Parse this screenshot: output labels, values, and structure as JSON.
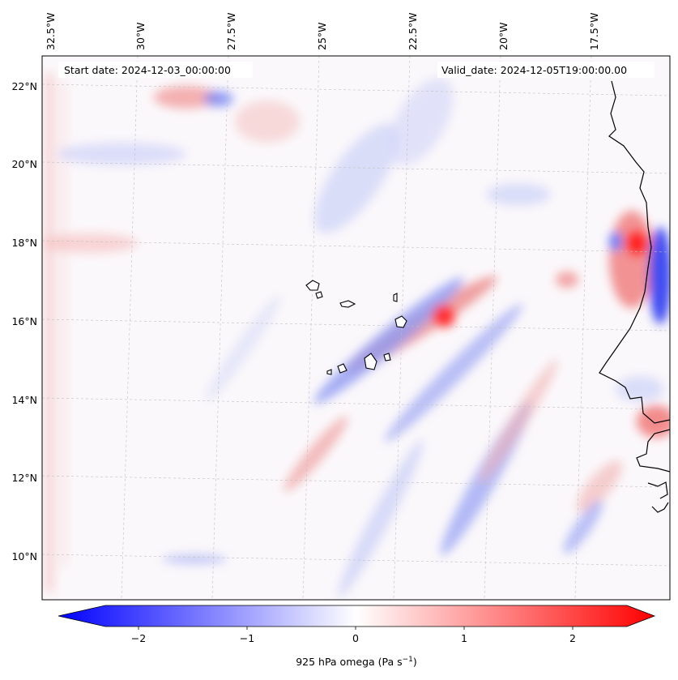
{
  "header": {
    "start_date": "Start date: 2024-12-03_00:00:00",
    "valid_date": "Valid_date: 2024-12-05T19:00:00.00"
  },
  "map": {
    "longitude_labels": [
      "32.5°W",
      "30°W",
      "27.5°W",
      "25°W",
      "22.5°W",
      "20°W",
      "17.5°W"
    ],
    "latitude_labels": [
      "22°N",
      "20°N",
      "18°N",
      "16°N",
      "14°N",
      "12°N",
      "10°N"
    ],
    "field_colors": {
      "negative": "#0000ff",
      "zero": "#ffffff",
      "positive": "#ff0000"
    }
  },
  "colorbar": {
    "ticks": [
      "−2",
      "−1",
      "0",
      "1",
      "2"
    ],
    "range": [
      -2.5,
      2.5
    ],
    "label_prefix": "925 hPa omega (Pa s",
    "label_exp": "−1",
    "label_suffix": ")"
  }
}
